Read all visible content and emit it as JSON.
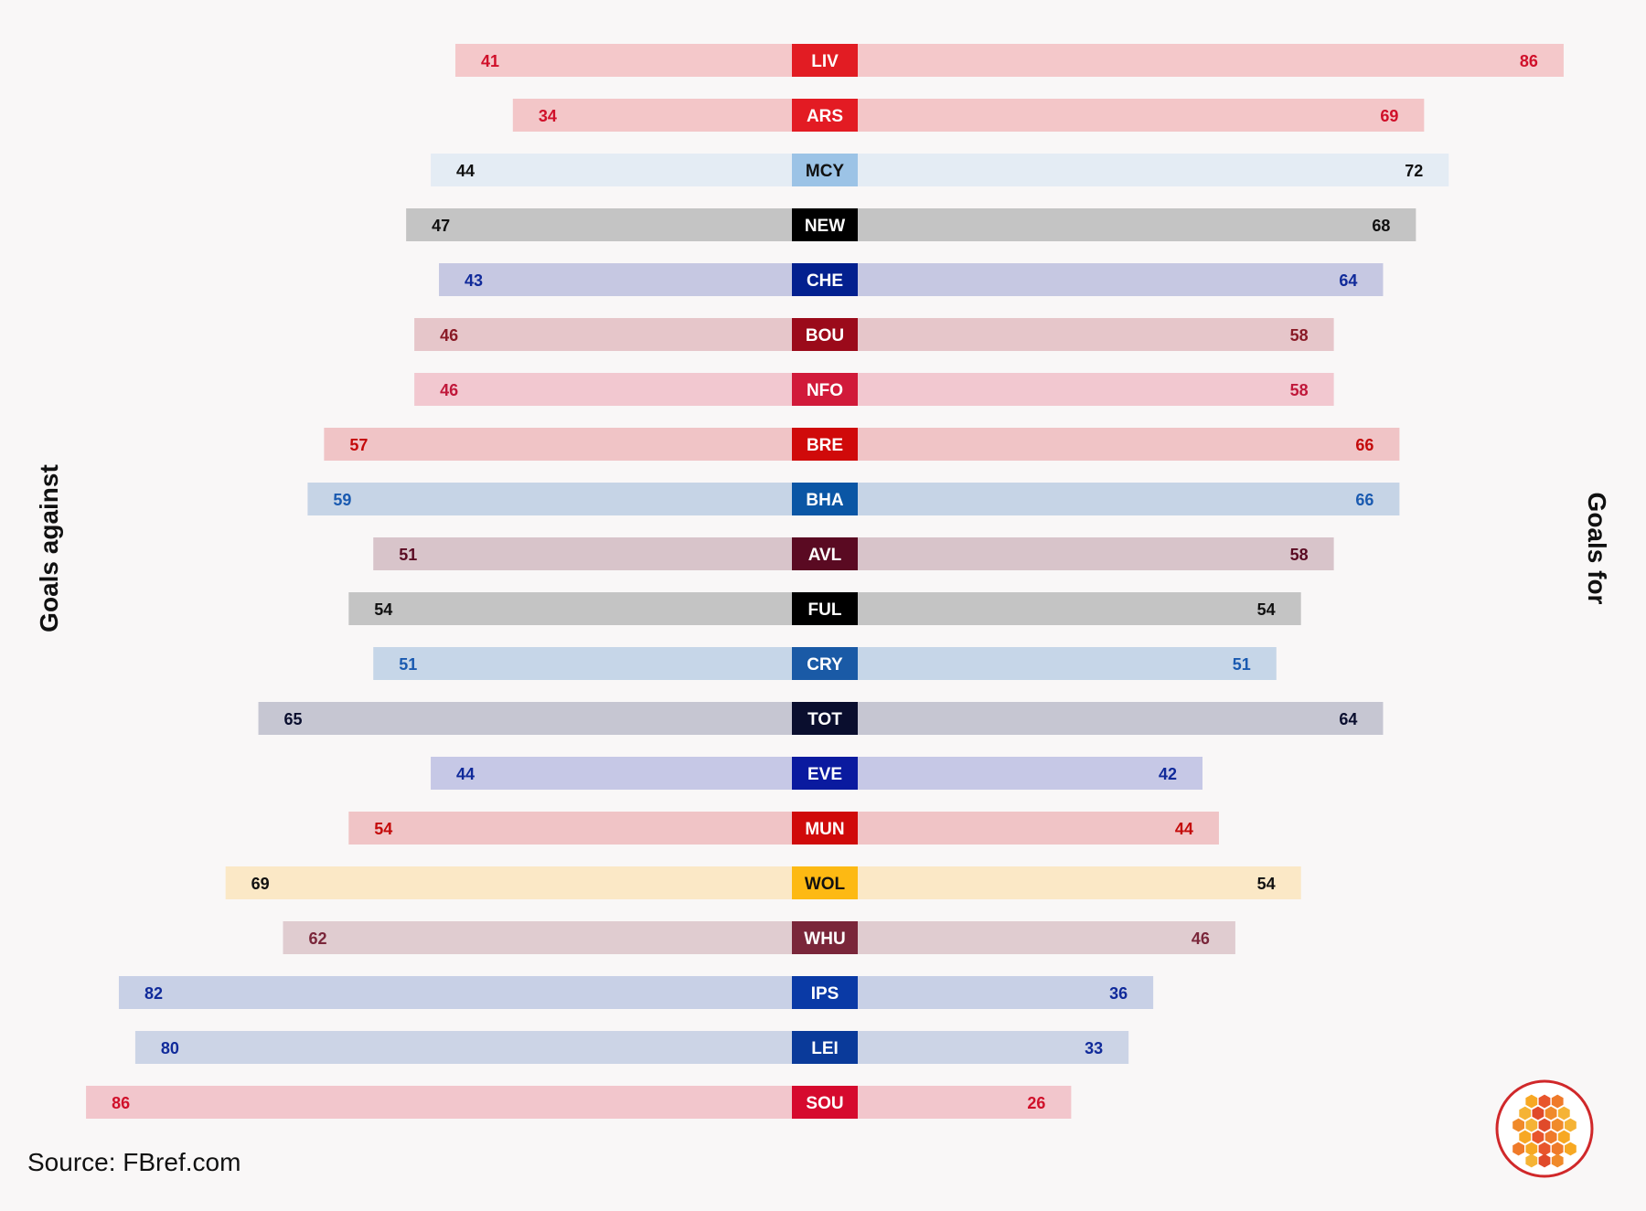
{
  "chart_data": {
    "type": "bar",
    "orientation": "diverging-horizontal",
    "left_label": "Goals against",
    "right_label": "Goals for",
    "source": "Source: FBref.com",
    "categories": [
      "LIV",
      "ARS",
      "MCY",
      "NEW",
      "CHE",
      "BOU",
      "NFO",
      "BRE",
      "BHA",
      "AVL",
      "FUL",
      "CRY",
      "TOT",
      "EVE",
      "MUN",
      "WOL",
      "WHU",
      "IPS",
      "LEI",
      "SOU"
    ],
    "series": [
      {
        "name": "Goals against",
        "values": [
          41,
          34,
          44,
          47,
          43,
          46,
          46,
          57,
          59,
          51,
          54,
          51,
          65,
          44,
          54,
          69,
          62,
          82,
          80,
          86
        ]
      },
      {
        "name": "Goals for",
        "values": [
          86,
          69,
          72,
          68,
          64,
          58,
          58,
          66,
          66,
          58,
          54,
          51,
          64,
          42,
          44,
          54,
          46,
          36,
          33,
          26
        ]
      }
    ],
    "team_colors": [
      "#e21c23",
      "#e31b23",
      "#9cc3e6",
      "#000000",
      "#03208f",
      "#9b0a1a",
      "#d11a3a",
      "#d00a0a",
      "#0a56a5",
      "#5a0a22",
      "#000000",
      "#1a5aa6",
      "#0a0e2e",
      "#0a1a9f",
      "#d00a0a",
      "#fdb913",
      "#7a263a",
      "#0a3aa6",
      "#0a3a9a",
      "#d60a2e"
    ],
    "bar_colors": [
      "#f4c8ca",
      "#f3c6c8",
      "#e4ecf4",
      "#c4c4c4",
      "#c6c8e2",
      "#e6c6ca",
      "#f2c8d0",
      "#f0c4c6",
      "#c6d4e6",
      "#d8c4ca",
      "#c4c4c4",
      "#c6d6e8",
      "#c6c6d2",
      "#c6c8e6",
      "#f0c4c6",
      "#fbe8c6",
      "#e0ccd0",
      "#c8d0e6",
      "#ccd4e6",
      "#f2c6cc"
    ],
    "value_label_colors": [
      "#d0102a",
      "#d0102a",
      "#111111",
      "#111111",
      "#102a9a",
      "#8a1a26",
      "#c0183a",
      "#c40a0a",
      "#1a5ab0",
      "#5a0a22",
      "#111111",
      "#1a5ab0",
      "#0a0e2e",
      "#102a9a",
      "#c40a0a",
      "#111111",
      "#7a263a",
      "#102a9a",
      "#102a9a",
      "#d0102a"
    ],
    "xlim": [
      0,
      90
    ],
    "grid": false,
    "legend": "none"
  }
}
